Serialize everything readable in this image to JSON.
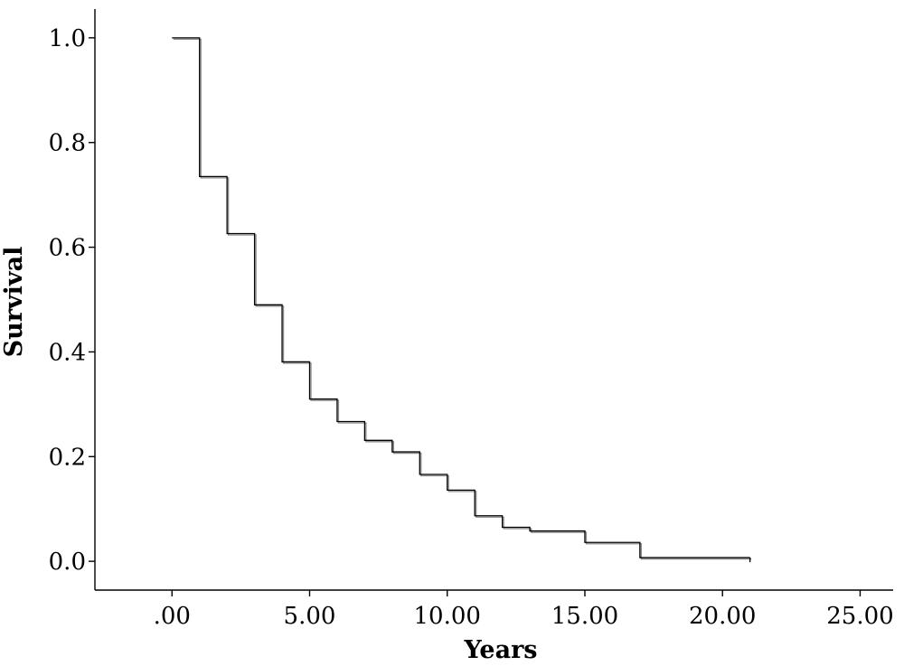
{
  "chart_data": {
    "type": "line",
    "subtype": "step",
    "title": "",
    "xlabel": "Years",
    "ylabel": "Survival",
    "xlim": [
      -2.8,
      26.2
    ],
    "ylim": [
      -0.055,
      1.055
    ],
    "x_ticks": [
      0,
      5,
      10,
      15,
      20,
      25
    ],
    "x_tick_labels": [
      ".00",
      "5.00",
      "10.00",
      "15.00",
      "20.00",
      "25.00"
    ],
    "y_ticks": [
      0.0,
      0.2,
      0.4,
      0.6,
      0.8,
      1.0
    ],
    "y_tick_labels": [
      "0.0",
      "0.2",
      "0.4",
      "0.6",
      "0.8",
      "1.0"
    ],
    "grid": false,
    "legend": "none",
    "series": [
      {
        "x": [
          0,
          1,
          2,
          3,
          4,
          5,
          6,
          7,
          8,
          9,
          10,
          11,
          12,
          13,
          15,
          17,
          21
        ],
        "y": [
          1.0,
          0.735,
          0.626,
          0.49,
          0.381,
          0.31,
          0.267,
          0.231,
          0.209,
          0.166,
          0.136,
          0.087,
          0.065,
          0.058,
          0.036,
          0.007,
          0.007
        ]
      }
    ],
    "colors": {
      "line": "#000000",
      "axis": "#000000",
      "background": "#ffffff"
    }
  }
}
